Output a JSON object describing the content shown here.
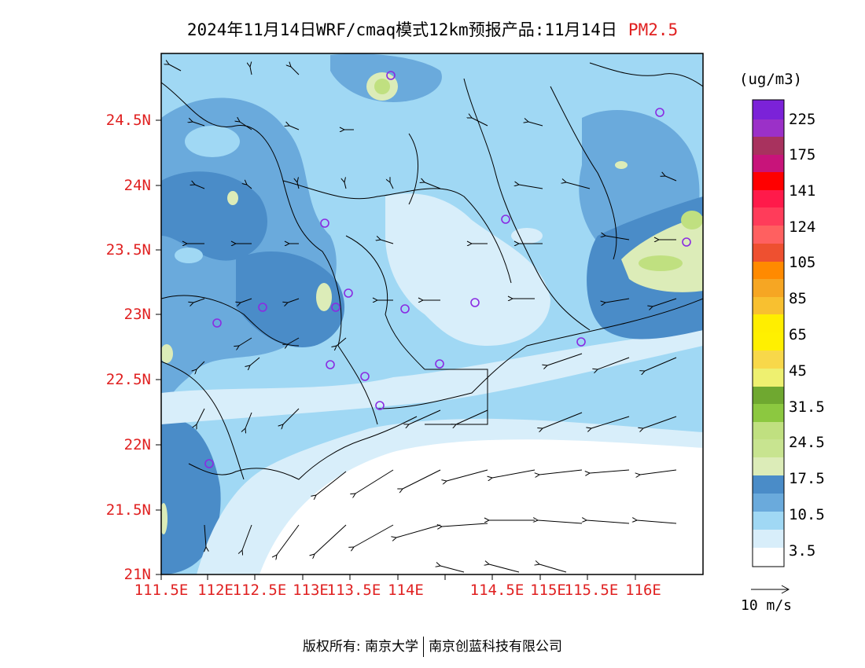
{
  "title": {
    "main": "2024年11月14日WRF/cmaq模式12km预报产品:11月14日",
    "pollutant": "PM2.5"
  },
  "axes": {
    "lat_labels": [
      "24.5N",
      "24N",
      "23.5N",
      "23N",
      "22.5N",
      "22N",
      "21.5N",
      "21N"
    ],
    "lon_labels": [
      "111.5E",
      "112E",
      "112.5E",
      "113E",
      "113.5E",
      "114E",
      "114.5E",
      "115E",
      "115.5E",
      "116E"
    ]
  },
  "legend": {
    "units": "(ug/m3)",
    "labels": [
      "225",
      "175",
      "141",
      "124",
      "105",
      "85",
      "65",
      "45",
      "31.5",
      "24.5",
      "17.5",
      "10.5",
      "3.5"
    ],
    "colors_top_to_bottom": [
      "#7b22d8",
      "#9b30c8",
      "#a8325e",
      "#c8147a",
      "#ff0000",
      "#ff1a4a",
      "#ff3c5a",
      "#ff6060",
      "#ee5030",
      "#ff8a00",
      "#f6a623",
      "#f8c030",
      "#ffee00",
      "#fff000",
      "#f8d84a",
      "#eef070",
      "#6fa830",
      "#8cc840",
      "#c0e080",
      "#c8e490",
      "#dcecb8",
      "#4a8cc8",
      "#6aaadc",
      "#a0d8f4",
      "#d8eefa",
      "#ffffff"
    ]
  },
  "vector_reference": "10 m/s",
  "footer": {
    "left": "版权所有: 南京大学",
    "right": "南京创蓝科技有限公司"
  },
  "colors": {
    "axis_label": "#e02020",
    "station_marker": "#8a2be2"
  }
}
